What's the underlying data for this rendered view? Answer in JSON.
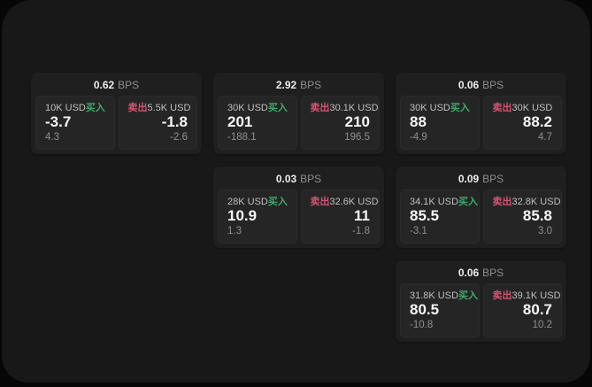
{
  "window": {
    "background": "#060606",
    "panel_background": "#181818"
  },
  "labels": {
    "buy": "买入",
    "sell": "卖出",
    "bps_suffix": "BPS"
  },
  "colors": {
    "buy_green": "#43a86e",
    "sell_red": "#d15570",
    "card_background": "#1f1f1f",
    "quote_background": "#252526"
  },
  "cards": [
    {
      "bps": "0.62",
      "buy": {
        "notional": "10K USD",
        "price": "-3.7",
        "change": "4.3"
      },
      "sell": {
        "notional": "5.5K USD",
        "price": "-1.8",
        "change": "-2.6"
      }
    },
    {
      "bps": "2.92",
      "buy": {
        "notional": "30K USD",
        "price": "201",
        "change": "-188.1"
      },
      "sell": {
        "notional": "30.1K USD",
        "price": "210",
        "change": "196.5"
      }
    },
    {
      "bps": "0.06",
      "buy": {
        "notional": "30K USD",
        "price": "88",
        "change": "-4.9"
      },
      "sell": {
        "notional": "30K USD",
        "price": "88.2",
        "change": "4.7"
      }
    },
    {
      "bps": "0.03",
      "buy": {
        "notional": "28K USD",
        "price": "10.9",
        "change": "1.3"
      },
      "sell": {
        "notional": "32.6K USD",
        "price": "11",
        "change": "-1.8"
      }
    },
    {
      "bps": "0.09",
      "buy": {
        "notional": "34.1K USD",
        "price": "85.5",
        "change": "-3.1"
      },
      "sell": {
        "notional": "32.8K USD",
        "price": "85.8",
        "change": "3.0"
      }
    },
    {
      "bps": "0.06",
      "buy": {
        "notional": "31.8K USD",
        "price": "80.5",
        "change": "-10.8"
      },
      "sell": {
        "notional": "39.1K USD",
        "price": "80.7",
        "change": "10.2"
      }
    }
  ]
}
